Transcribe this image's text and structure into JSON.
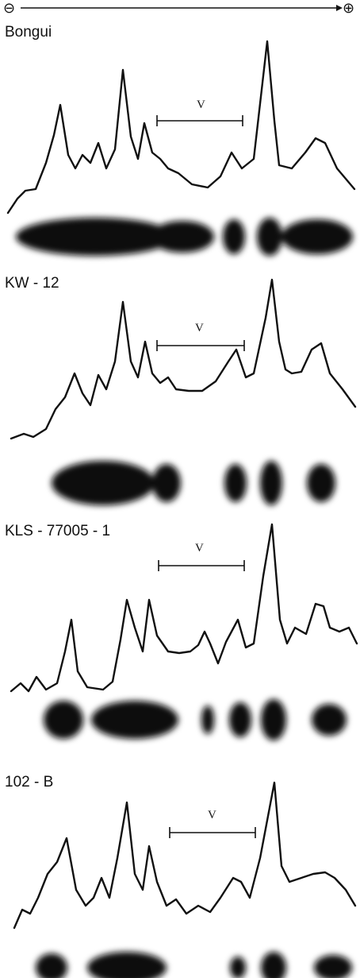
{
  "header": {
    "minus": "⊖",
    "plus": "⊕"
  },
  "panels": [
    {
      "label": "Bongui",
      "range_label": "V"
    },
    {
      "label": "KW - 12",
      "range_label": "V"
    },
    {
      "label": "KLS - 77005 - 1",
      "range_label": "V"
    },
    {
      "label": "102 - B",
      "range_label": "V"
    }
  ]
}
